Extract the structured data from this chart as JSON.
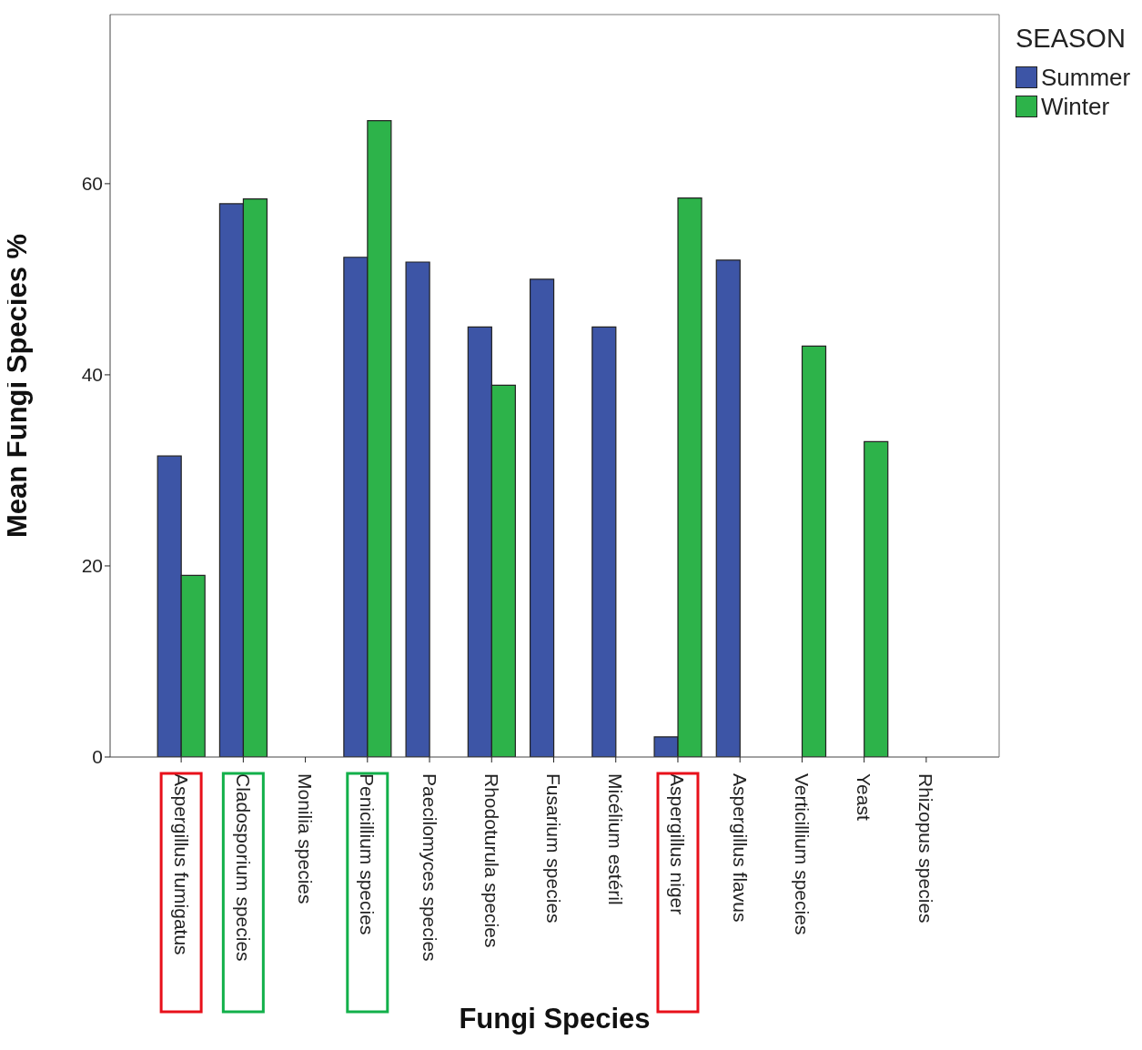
{
  "chart_data": {
    "type": "bar",
    "xlabel": "Fungi Species",
    "ylabel": "Mean Fungi Species %",
    "legend_title": "SEASON",
    "categories": [
      "Aspergillus fumigatus",
      "Cladosporium species",
      "Monilia species",
      "Penicillium species",
      "Paecilomyces species",
      "Rhodoturula species",
      "Fusarium species",
      "Micélium estéril",
      "Aspergillus niger",
      "Aspergillus flavus",
      "Verticillium species",
      "Yeast",
      "Rhizopus species"
    ],
    "series": [
      {
        "name": "Summer",
        "color": "#3d55a6",
        "values": [
          31.5,
          57.9,
          null,
          52.3,
          51.8,
          45,
          50,
          45,
          2.1,
          52,
          null,
          null,
          null
        ]
      },
      {
        "name": "Winter",
        "color": "#2db34a",
        "values": [
          19,
          58.4,
          null,
          66.6,
          null,
          38.9,
          null,
          null,
          58.5,
          null,
          43,
          33,
          null
        ]
      }
    ],
    "ylim": [
      0,
      77.7
    ],
    "yticks": [
      0,
      20,
      40,
      60
    ],
    "grid": false,
    "legend": "top right"
  }
}
